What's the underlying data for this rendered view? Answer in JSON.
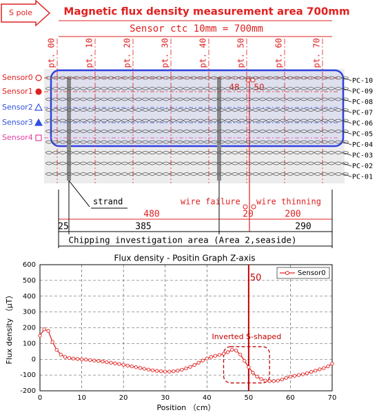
{
  "diagram": {
    "pole": "S pole",
    "title": "Magnetic flux density measurement area 700mm",
    "subtitle": "Sensor ctc 10mm = 700mm",
    "points": [
      "pt. 00",
      "pt. 10",
      "pt. 20",
      "pt. 30",
      "pt. 40",
      "pt. 50",
      "pt. 60",
      "pt. 70"
    ],
    "cables": [
      "PC-10",
      "PC-09",
      "PC-08",
      "PC-07",
      "PC-06",
      "PC-05",
      "PC-04",
      "PC-03",
      "PC-02",
      "PC-01"
    ],
    "sensors": [
      {
        "name": "Sensor0",
        "color": "#e02020",
        "marker": "circle-open"
      },
      {
        "name": "Sensor1",
        "color": "#e02020",
        "marker": "circle"
      },
      {
        "name": "Sensor2",
        "color": "#3050e0",
        "marker": "triangle-open"
      },
      {
        "name": "Sensor3",
        "color": "#3050e0",
        "marker": "triangle"
      },
      {
        "name": "Sensor4",
        "color": "#e040a0",
        "marker": "square-open"
      }
    ],
    "marks": [
      "48",
      "50"
    ],
    "strand": "strand",
    "failure": "wire failure",
    "thinning": "wire thinning",
    "dimensions_top": [
      "480",
      "20",
      "200"
    ],
    "dimensions_bottom": [
      "25",
      "385",
      "290"
    ],
    "area": "Chipping investigation area (Area 2,seaside)"
  },
  "chart_data": {
    "type": "line",
    "title": "Flux density - Positin Graph Z-axis",
    "x_label": "Position （cm）",
    "y_label": "Flux density （μT）",
    "x": [
      0,
      1,
      2,
      3,
      4,
      5,
      6,
      7,
      8,
      9,
      10,
      11,
      12,
      13,
      14,
      15,
      16,
      17,
      18,
      19,
      20,
      21,
      22,
      23,
      24,
      25,
      26,
      27,
      28,
      29,
      30,
      31,
      32,
      33,
      34,
      35,
      36,
      37,
      38,
      39,
      40,
      41,
      42,
      43,
      44,
      45,
      46,
      47,
      48,
      49,
      50,
      51,
      52,
      53,
      54,
      55,
      56,
      57,
      58,
      59,
      60,
      61,
      62,
      63,
      64,
      65,
      66,
      67,
      68,
      69,
      70
    ],
    "series": [
      {
        "name": "Sensor0",
        "color": "#e02020",
        "values": [
          150,
          190,
          180,
          110,
          60,
          30,
          15,
          8,
          5,
          2,
          0,
          -2,
          -5,
          -8,
          -10,
          -14,
          -18,
          -22,
          -26,
          -30,
          -35,
          -40,
          -45,
          -50,
          -55,
          -60,
          -65,
          -70,
          -73,
          -76,
          -78,
          -78,
          -76,
          -72,
          -66,
          -58,
          -48,
          -36,
          -22,
          -8,
          5,
          15,
          22,
          28,
          35,
          45,
          60,
          55,
          30,
          -10,
          -50,
          -85,
          -110,
          -125,
          -135,
          -138,
          -138,
          -135,
          -128,
          -118,
          -110,
          -105,
          -100,
          -95,
          -88,
          -80,
          -72,
          -64,
          -56,
          -45,
          -28
        ]
      }
    ],
    "xlim": [
      0,
      70
    ],
    "ylim": [
      -200,
      600
    ],
    "xticks": [
      0,
      10,
      20,
      30,
      40,
      50,
      60,
      70
    ],
    "yticks": [
      -200,
      -100,
      0,
      100,
      200,
      300,
      400,
      500,
      600
    ],
    "grid": true,
    "legend": "upper right",
    "vline": 50,
    "annotation": "Inverted S-shaped"
  }
}
